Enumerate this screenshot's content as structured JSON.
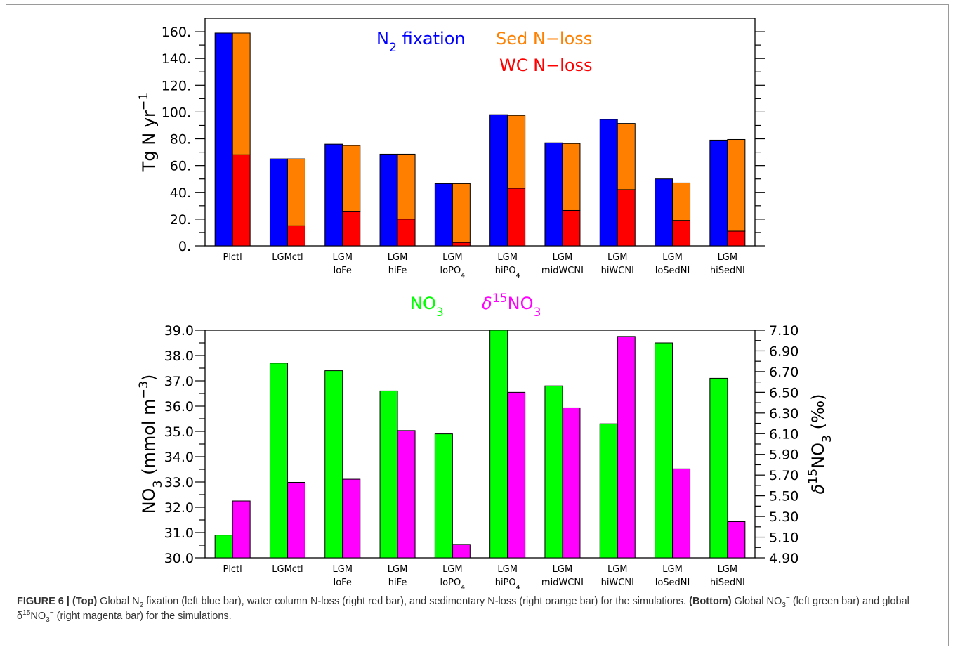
{
  "colors": {
    "n2_fixation": "#0000ff",
    "sed_nloss": "#ff8000",
    "wc_nloss": "#ff0000",
    "no3": "#00ff00",
    "d15no3": "#ff00ff"
  },
  "chart_data": [
    {
      "type": "bar",
      "panel": "top",
      "categories": [
        [
          "Plctl"
        ],
        [
          "LGMctl"
        ],
        [
          "LGM",
          "loFe"
        ],
        [
          "LGM",
          "hiFe"
        ],
        [
          "LGM",
          "loPO4"
        ],
        [
          "LGM",
          "hiPO4"
        ],
        [
          "LGM",
          "midWCNI"
        ],
        [
          "LGM",
          "hiWCNI"
        ],
        [
          "LGM",
          "loSedNI"
        ],
        [
          "LGM",
          "hiSedNI"
        ]
      ],
      "ylabel": "Tg N yr-1",
      "ylim": [
        0,
        170
      ],
      "yticks": [
        "0.",
        "20.",
        "40.",
        "60.",
        "80.",
        "100.",
        "120.",
        "140.",
        "160."
      ],
      "legend": {
        "n2_fixation": "N2 fixation",
        "sed_nloss": "Sed N-loss",
        "wc_nloss": "WC N-loss"
      },
      "series": [
        {
          "name": "N2 fixation",
          "values": [
            159,
            65,
            76,
            68.5,
            46.5,
            98,
            77,
            94.5,
            50,
            79
          ]
        },
        {
          "name": "Sed N-loss",
          "values": [
            91,
            50,
            49.5,
            48.5,
            44,
            54.5,
            50,
            49.5,
            28,
            68.5
          ]
        },
        {
          "name": "WC N-loss",
          "values": [
            68,
            15,
            25.5,
            20,
            2.5,
            43,
            26.5,
            42,
            19,
            11
          ]
        }
      ]
    },
    {
      "type": "bar",
      "panel": "bottom",
      "categories": [
        [
          "Plctl"
        ],
        [
          "LGMctl"
        ],
        [
          "LGM",
          "loFe"
        ],
        [
          "LGM",
          "hiFe"
        ],
        [
          "LGM",
          "loPO4"
        ],
        [
          "LGM",
          "hiPO4"
        ],
        [
          "LGM",
          "midWCNI"
        ],
        [
          "LGM",
          "hiWCNI"
        ],
        [
          "LGM",
          "loSedNI"
        ],
        [
          "LGM",
          "hiSedNI"
        ]
      ],
      "ylabel_left": "NO3 (mmol m-3)",
      "ylabel_right": "δ15NO3 (‰)",
      "ylim_left": [
        30.0,
        39.0
      ],
      "ylim_right": [
        4.9,
        7.1
      ],
      "yticks_left": [
        "30.0",
        "31.0",
        "32.0",
        "33.0",
        "34.0",
        "35.0",
        "36.0",
        "37.0",
        "38.0",
        "39.0"
      ],
      "yticks_right": [
        "4.90",
        "5.10",
        "5.30",
        "5.50",
        "5.70",
        "5.90",
        "6.10",
        "6.30",
        "6.50",
        "6.70",
        "6.90",
        "7.10"
      ],
      "legend": {
        "no3": "NO3",
        "d15no3": "δ15NO3"
      },
      "series": [
        {
          "name": "NO3",
          "axis": "left",
          "values": [
            30.9,
            37.7,
            37.4,
            36.6,
            34.9,
            39.0,
            36.8,
            35.3,
            38.5,
            37.1
          ]
        },
        {
          "name": "δ15NO3",
          "axis": "right",
          "values": [
            5.45,
            5.63,
            5.66,
            6.13,
            5.03,
            6.5,
            6.35,
            7.04,
            5.76,
            5.25
          ]
        }
      ]
    }
  ],
  "caption": {
    "figure_label": "FIGURE 6 | ",
    "top_label": "(Top)",
    "top_text_a": " Global N",
    "top_sub_2": "2",
    "top_text_b": " fixation (left blue bar), water column N-loss (right red bar), and sedimentary N-loss (right orange bar) for the simulations. ",
    "bottom_label": "(Bottom)",
    "bottom_text_a": " Global NO",
    "bottom_sub_3": "3",
    "bottom_sup_minus": "−",
    "bottom_text_b": " (left green bar) and global δ",
    "bottom_sup_15": "15",
    "bottom_text_c": "NO",
    "bottom_sub_3b": "3",
    "bottom_sup_minus_b": "−",
    "bottom_text_d": " (right magenta bar) for the simulations."
  }
}
